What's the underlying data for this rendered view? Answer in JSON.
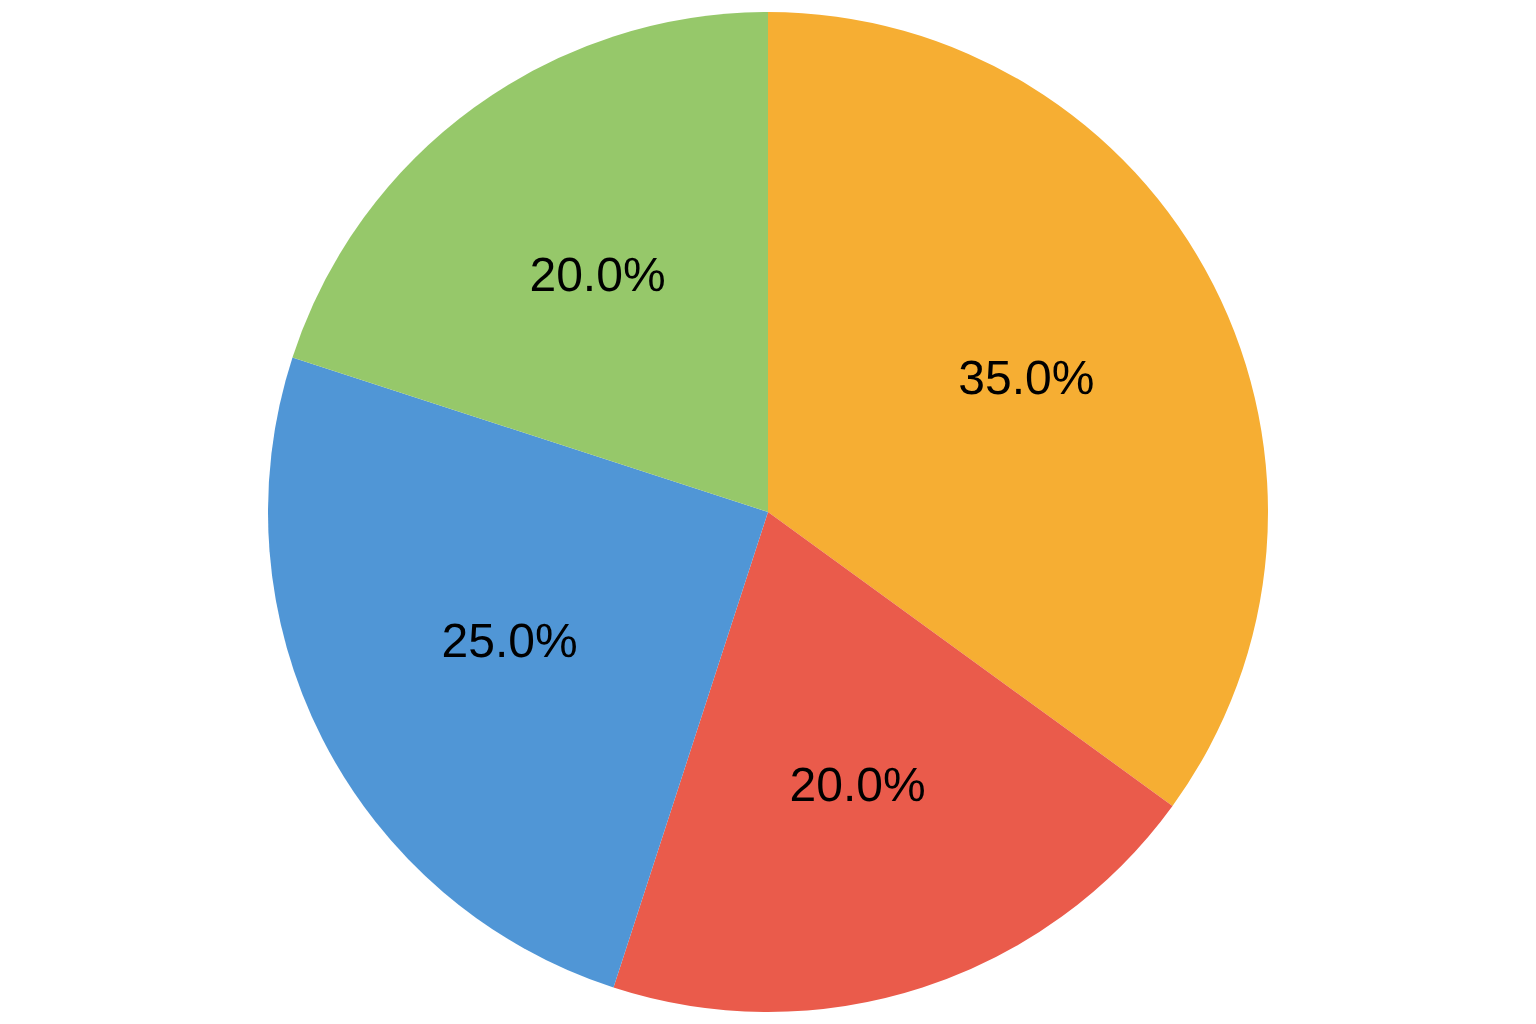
{
  "chart_data": {
    "type": "pie",
    "categories": [
      null,
      null,
      null,
      null
    ],
    "values": [
      35,
      20,
      25,
      20
    ],
    "colors": [
      "#f6ae33",
      "#ea5b4b",
      "#5096d6",
      "#96c86a"
    ],
    "value_labels": [
      "35.0%",
      "20.0%",
      "25.0%",
      "20.0%"
    ],
    "legend": false
  }
}
